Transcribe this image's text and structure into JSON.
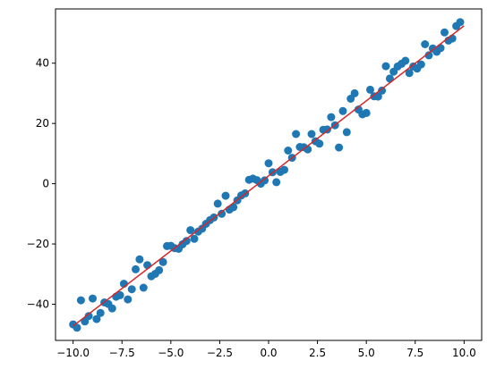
{
  "chart_data": {
    "type": "scatter",
    "title": "",
    "xlabel": "",
    "ylabel": "",
    "xlim": [
      -10.9,
      10.9
    ],
    "ylim": [
      -52,
      58
    ],
    "grid": false,
    "legend": "none",
    "x_ticks": [
      -10.0,
      -7.5,
      -5.0,
      -2.5,
      0.0,
      2.5,
      5.0,
      7.5,
      10.0
    ],
    "x_tick_labels": [
      "−10.0",
      "−7.5",
      "−5.0",
      "−2.5",
      "0.0",
      "2.5",
      "5.0",
      "7.5",
      "10.0"
    ],
    "y_ticks": [
      -40,
      -20,
      0,
      20,
      40
    ],
    "y_tick_labels": [
      "−40",
      "−20",
      "0",
      "20",
      "40"
    ],
    "series": [
      {
        "kind": "scatter",
        "color": "#1f77b4",
        "points": [
          [
            -10.0,
            -46.7
          ],
          [
            -9.8,
            -47.8
          ],
          [
            -9.6,
            -38.7
          ],
          [
            -9.4,
            -45.7
          ],
          [
            -9.2,
            -43.9
          ],
          [
            -9.0,
            -38.1
          ],
          [
            -8.8,
            -44.9
          ],
          [
            -8.6,
            -42.9
          ],
          [
            -8.4,
            -39.4
          ],
          [
            -8.2,
            -39.9
          ],
          [
            -8.0,
            -41.4
          ],
          [
            -7.8,
            -37.5
          ],
          [
            -7.6,
            -37.0
          ],
          [
            -7.4,
            -33.2
          ],
          [
            -7.2,
            -38.4
          ],
          [
            -7.0,
            -35.0
          ],
          [
            -6.8,
            -28.4
          ],
          [
            -6.6,
            -25.1
          ],
          [
            -6.4,
            -34.5
          ],
          [
            -6.2,
            -27.0
          ],
          [
            -6.0,
            -30.7
          ],
          [
            -5.8,
            -29.9
          ],
          [
            -5.6,
            -28.7
          ],
          [
            -5.4,
            -26.0
          ],
          [
            -5.2,
            -20.7
          ],
          [
            -5.0,
            -20.6
          ],
          [
            -4.8,
            -21.4
          ],
          [
            -4.6,
            -21.6
          ],
          [
            -4.4,
            -20.1
          ],
          [
            -4.2,
            -19.0
          ],
          [
            -4.0,
            -15.4
          ],
          [
            -3.8,
            -18.3
          ],
          [
            -3.6,
            -15.9
          ],
          [
            -3.4,
            -14.9
          ],
          [
            -3.2,
            -13.3
          ],
          [
            -3.0,
            -12.1
          ],
          [
            -2.8,
            -11.2
          ],
          [
            -2.6,
            -6.6
          ],
          [
            -2.4,
            -10.0
          ],
          [
            -2.2,
            -4.0
          ],
          [
            -2.0,
            -8.6
          ],
          [
            -1.8,
            -7.8
          ],
          [
            -1.6,
            -5.5
          ],
          [
            -1.4,
            -3.9
          ],
          [
            -1.2,
            -3.2
          ],
          [
            -1.0,
            1.3
          ],
          [
            -0.8,
            1.7
          ],
          [
            -0.6,
            1.2
          ],
          [
            -0.4,
            0.0
          ],
          [
            -0.2,
            1.1
          ],
          [
            0.0,
            6.8
          ],
          [
            0.2,
            3.8
          ],
          [
            0.4,
            0.5
          ],
          [
            0.6,
            3.9
          ],
          [
            0.8,
            4.6
          ],
          [
            1.0,
            11.0
          ],
          [
            1.2,
            8.6
          ],
          [
            1.4,
            16.5
          ],
          [
            1.6,
            12.2
          ],
          [
            1.8,
            12.1
          ],
          [
            2.0,
            11.4
          ],
          [
            2.2,
            16.5
          ],
          [
            2.4,
            14.1
          ],
          [
            2.6,
            13.3
          ],
          [
            2.8,
            17.9
          ],
          [
            3.0,
            18.0
          ],
          [
            3.2,
            22.1
          ],
          [
            3.4,
            19.4
          ],
          [
            3.6,
            12.0
          ],
          [
            3.8,
            24.1
          ],
          [
            4.0,
            17.1
          ],
          [
            4.2,
            28.2
          ],
          [
            4.4,
            30.0
          ],
          [
            4.6,
            24.6
          ],
          [
            4.8,
            23.0
          ],
          [
            5.0,
            23.5
          ],
          [
            5.2,
            31.2
          ],
          [
            5.4,
            29.0
          ],
          [
            5.6,
            28.9
          ],
          [
            5.8,
            30.9
          ],
          [
            6.0,
            39.0
          ],
          [
            6.2,
            34.9
          ],
          [
            6.4,
            37.2
          ],
          [
            6.6,
            38.9
          ],
          [
            6.8,
            39.8
          ],
          [
            7.0,
            40.8
          ],
          [
            7.2,
            36.7
          ],
          [
            7.4,
            38.9
          ],
          [
            7.6,
            38.2
          ],
          [
            7.8,
            39.6
          ],
          [
            8.0,
            46.3
          ],
          [
            8.2,
            42.6
          ],
          [
            8.4,
            44.9
          ],
          [
            8.6,
            43.8
          ],
          [
            8.8,
            45.0
          ],
          [
            9.0,
            50.2
          ],
          [
            9.2,
            47.5
          ],
          [
            9.4,
            48.2
          ],
          [
            9.6,
            52.3
          ],
          [
            9.8,
            53.6
          ]
        ]
      },
      {
        "kind": "line",
        "color": "#d62728",
        "points": [
          [
            -10.0,
            -47.2
          ],
          [
            10.0,
            52.4
          ]
        ]
      }
    ]
  }
}
